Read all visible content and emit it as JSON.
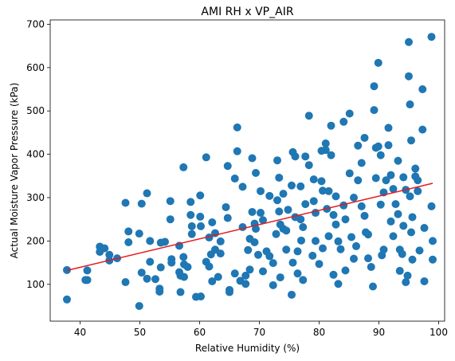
{
  "chart_data": {
    "type": "scatter",
    "title": "AMI RH x VP_AIR",
    "xlabel": "Relative Humidity (%)",
    "ylabel": "Actual Moisture Vapor Pressure (kPa)",
    "xlim": [
      35,
      101
    ],
    "ylim": [
      15,
      710
    ],
    "xticks": [
      40,
      50,
      60,
      70,
      80,
      90,
      100
    ],
    "yticks": [
      100,
      200,
      300,
      400,
      500,
      600,
      700
    ],
    "grid": false,
    "legend": "none",
    "colors": {
      "points": "#1f77b4",
      "trend": "#e31a1c"
    },
    "series": [
      {
        "kind": "scatter",
        "points": [
          [
            37.8,
            133
          ],
          [
            37.8,
            65
          ],
          [
            41.2,
            132
          ],
          [
            41.2,
            110
          ],
          [
            43.3,
            187
          ],
          [
            43.3,
            175
          ],
          [
            44.9,
            168
          ],
          [
            44.9,
            155
          ],
          [
            47.6,
            288
          ],
          [
            47.6,
            105
          ],
          [
            48.1,
            222
          ],
          [
            48.1,
            197
          ],
          [
            49.9,
            217
          ],
          [
            49.9,
            50
          ],
          [
            50.3,
            286
          ],
          [
            50.3,
            127
          ],
          [
            51.2,
            310
          ],
          [
            51.2,
            113
          ],
          [
            51.7,
            200
          ],
          [
            51.7,
            152
          ],
          [
            53.3,
            90
          ],
          [
            53.3,
            83
          ],
          [
            53.5,
            196
          ],
          [
            53.5,
            139
          ],
          [
            55.1,
            292
          ],
          [
            55.1,
            250
          ],
          [
            55.3,
            158
          ],
          [
            55.3,
            150
          ],
          [
            56.6,
            189
          ],
          [
            56.6,
            128
          ],
          [
            56.8,
            120
          ],
          [
            56.8,
            82
          ],
          [
            57.3,
            370
          ],
          [
            57.3,
            163
          ],
          [
            57.4,
            146
          ],
          [
            57.4,
            117
          ],
          [
            58.5,
            290
          ],
          [
            58.5,
            260
          ],
          [
            58.7,
            234
          ],
          [
            58.7,
            216
          ],
          [
            60.1,
            305
          ],
          [
            60.1,
            256
          ],
          [
            60.2,
            234
          ],
          [
            60.2,
            72
          ],
          [
            61.1,
            393
          ],
          [
            61.1,
            152
          ],
          [
            61.6,
            141
          ],
          [
            61.6,
            208
          ],
          [
            62.1,
            243
          ],
          [
            62.1,
            107
          ],
          [
            62.6,
            218
          ],
          [
            62.6,
            180
          ],
          [
            63.5,
            199
          ],
          [
            63.5,
            171
          ],
          [
            64.7,
            373
          ],
          [
            64.7,
            253
          ],
          [
            65.0,
            87
          ],
          [
            65.0,
            82
          ],
          [
            65.9,
            344
          ],
          [
            65.9,
            125
          ],
          [
            66.3,
            462
          ],
          [
            66.3,
            407
          ],
          [
            67.2,
            325
          ],
          [
            67.2,
            232
          ],
          [
            67.7,
            120
          ],
          [
            67.7,
            101
          ],
          [
            68.4,
            205
          ],
          [
            68.4,
            134
          ],
          [
            68.8,
            391
          ],
          [
            68.8,
            267
          ],
          [
            69.2,
            240
          ],
          [
            69.2,
            197
          ],
          [
            69.4,
            357
          ],
          [
            69.4,
            228
          ],
          [
            70.2,
            315
          ],
          [
            70.2,
            265
          ],
          [
            70.6,
            248
          ],
          [
            70.6,
            130
          ],
          [
            71.7,
            304
          ],
          [
            71.7,
            165
          ],
          [
            72.3,
            149
          ],
          [
            72.3,
            98
          ],
          [
            73.0,
            386
          ],
          [
            73.0,
            294
          ],
          [
            73.3,
            346
          ],
          [
            73.3,
            268
          ],
          [
            73.5,
            238
          ],
          [
            73.5,
            116
          ],
          [
            74.0,
            309
          ],
          [
            74.0,
            228
          ],
          [
            74.5,
            224
          ],
          [
            74.5,
            180
          ],
          [
            75.4,
            328
          ],
          [
            75.4,
            76
          ],
          [
            75.6,
            405
          ],
          [
            75.6,
            150
          ],
          [
            76.0,
            395
          ],
          [
            76.0,
            255
          ],
          [
            76.4,
            176
          ],
          [
            76.4,
            125
          ],
          [
            76.9,
            326
          ],
          [
            76.9,
            250
          ],
          [
            77.3,
            232
          ],
          [
            77.3,
            110
          ],
          [
            77.7,
            395
          ],
          [
            77.7,
            285
          ],
          [
            78.3,
            489
          ],
          [
            78.3,
            375
          ],
          [
            79.1,
            342
          ],
          [
            79.1,
            292
          ],
          [
            79.4,
            265
          ],
          [
            79.4,
            200
          ],
          [
            80.4,
            408
          ],
          [
            80.4,
            338
          ],
          [
            80.6,
            316
          ],
          [
            80.6,
            183
          ],
          [
            81.1,
            425
          ],
          [
            81.1,
            410
          ],
          [
            81.6,
            315
          ],
          [
            81.6,
            211
          ],
          [
            82.0,
            466
          ],
          [
            82.0,
            398
          ],
          [
            82.4,
            260
          ],
          [
            82.4,
            122
          ],
          [
            82.8,
            303
          ],
          [
            82.8,
            238
          ],
          [
            83.2,
            199
          ],
          [
            83.2,
            101
          ],
          [
            84.1,
            475
          ],
          [
            84.1,
            282
          ],
          [
            84.4,
            250
          ],
          [
            84.4,
            132
          ],
          [
            85.1,
            494
          ],
          [
            85.1,
            356
          ],
          [
            85.8,
            300
          ],
          [
            85.8,
            159
          ],
          [
            86.5,
            420
          ],
          [
            86.5,
            340
          ],
          [
            87.1,
            380
          ],
          [
            87.1,
            280
          ],
          [
            87.6,
            438
          ],
          [
            87.6,
            258
          ],
          [
            88.2,
            215
          ],
          [
            88.2,
            160
          ],
          [
            89.2,
            557
          ],
          [
            89.2,
            502
          ],
          [
            89.5,
            415
          ],
          [
            89.5,
            345
          ],
          [
            89.9,
            611
          ],
          [
            89.9,
            418
          ],
          [
            90.3,
            398
          ],
          [
            90.3,
            284
          ],
          [
            90.8,
            312
          ],
          [
            90.8,
            180
          ],
          [
            91.6,
            461
          ],
          [
            91.6,
            421
          ],
          [
            92.0,
            352
          ],
          [
            92.0,
            245
          ],
          [
            92.4,
            320
          ],
          [
            92.4,
            211
          ],
          [
            93.2,
            385
          ],
          [
            93.2,
            262
          ],
          [
            93.5,
            180
          ],
          [
            93.5,
            131
          ],
          [
            94.1,
            347
          ],
          [
            94.1,
            235
          ],
          [
            94.5,
            318
          ],
          [
            94.5,
            105
          ],
          [
            95.0,
            659
          ],
          [
            95.0,
            580
          ],
          [
            95.2,
            515
          ],
          [
            95.2,
            303
          ],
          [
            95.4,
            432
          ],
          [
            95.4,
            220
          ],
          [
            95.6,
            255
          ],
          [
            95.6,
            157
          ],
          [
            96.1,
            367
          ],
          [
            96.1,
            349
          ],
          [
            96.5,
            340
          ],
          [
            96.5,
            315
          ],
          [
            97.3,
            550
          ],
          [
            97.3,
            457
          ],
          [
            97.6,
            230
          ],
          [
            97.6,
            107
          ],
          [
            98.8,
            671
          ],
          [
            98.8,
            280
          ],
          [
            99.0,
            200
          ],
          [
            99.0,
            157
          ],
          [
            40.9,
            110
          ],
          [
            44.1,
            183
          ],
          [
            46.2,
            160
          ],
          [
            52.6,
            112
          ],
          [
            54.2,
            198
          ],
          [
            58.0,
            140
          ],
          [
            59.4,
            71
          ],
          [
            61.9,
            169
          ],
          [
            63.1,
            117
          ],
          [
            64.4,
            278
          ],
          [
            66.8,
            108
          ],
          [
            68.1,
            179
          ],
          [
            69.8,
            168
          ],
          [
            71.2,
            176
          ],
          [
            72.8,
            216
          ],
          [
            74.8,
            272
          ],
          [
            77.0,
            201
          ],
          [
            78.9,
            166
          ],
          [
            80.0,
            147
          ],
          [
            81.3,
            274
          ],
          [
            83.6,
            181
          ],
          [
            85.4,
            209
          ],
          [
            86.2,
            188
          ],
          [
            87.8,
            220
          ],
          [
            88.7,
            140
          ],
          [
            89.0,
            95
          ],
          [
            90.5,
            167
          ],
          [
            91.2,
            340
          ],
          [
            92.8,
            285
          ],
          [
            93.9,
            170
          ],
          [
            94.8,
            120
          ],
          [
            96.8,
            178
          ]
        ]
      },
      {
        "kind": "line",
        "name": "",
        "x": [
          37.8,
          99.0
        ],
        "y": [
          132,
          333
        ]
      }
    ]
  }
}
